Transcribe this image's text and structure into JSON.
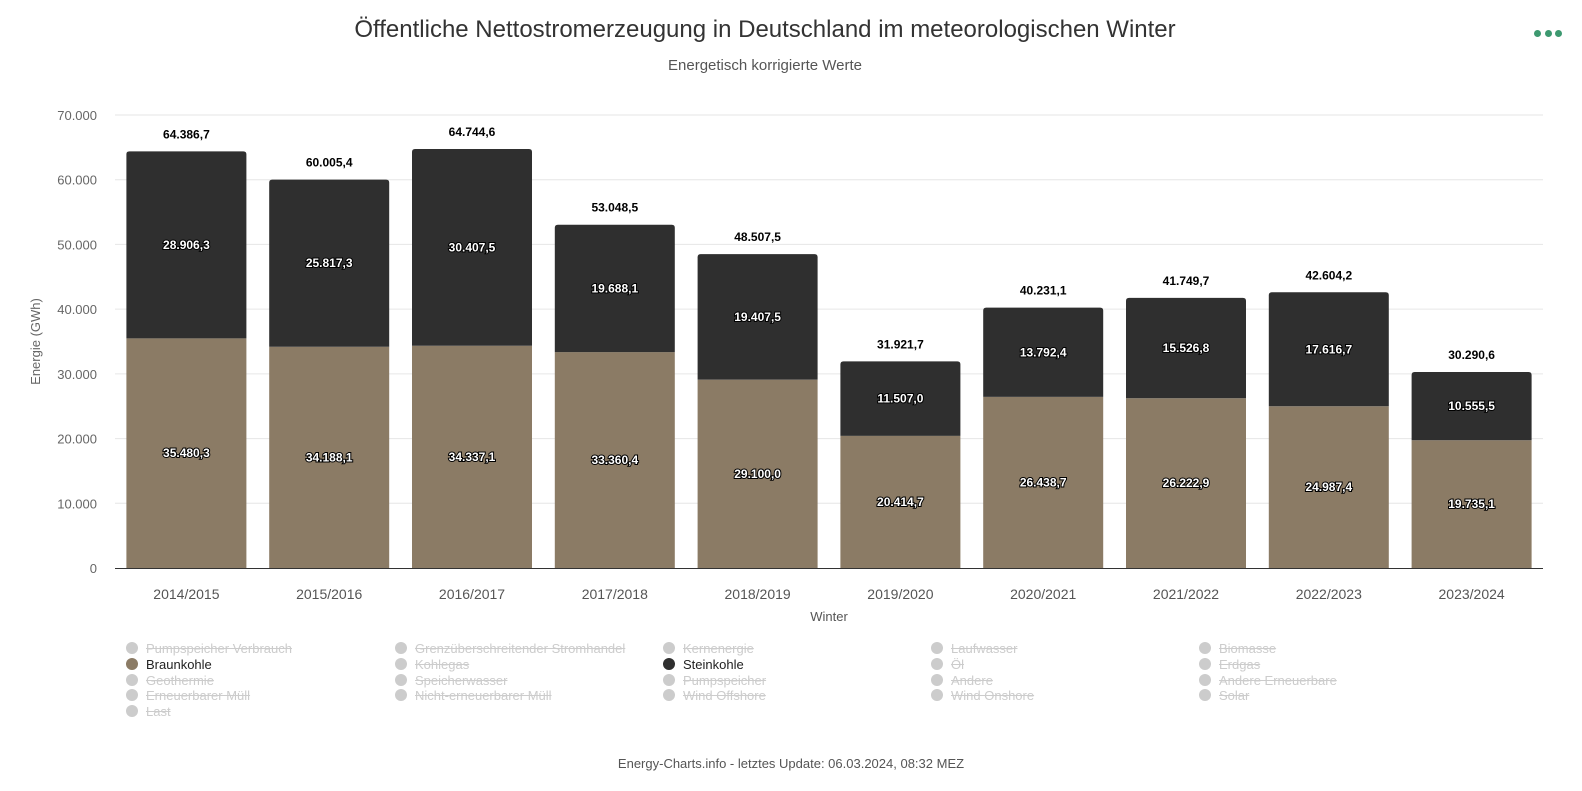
{
  "header": {
    "title": "Öffentliche Nettostromerzeugung in Deutschland im meteorologischen Winter",
    "subtitle": "Energetisch korrigierte Werte",
    "menu_icon": "more-horizontal-icon",
    "menu_color": "#3d9970"
  },
  "chart_data": {
    "type": "bar",
    "stacked": true,
    "title": "Öffentliche Nettostromerzeugung in Deutschland im meteorologischen Winter",
    "subtitle": "Energetisch korrigierte Werte",
    "xlabel": "Winter",
    "ylabel": "Energie (GWh)",
    "ylim": [
      0,
      70000
    ],
    "yticks": [
      0,
      10000,
      20000,
      30000,
      40000,
      50000,
      60000,
      70000
    ],
    "ytick_labels": [
      "0",
      "10.000",
      "20.000",
      "30.000",
      "40.000",
      "50.000",
      "60.000",
      "70.000"
    ],
    "grid": true,
    "categories": [
      "2014/2015",
      "2015/2016",
      "2016/2017",
      "2017/2018",
      "2018/2019",
      "2019/2020",
      "2020/2021",
      "2021/2022",
      "2022/2023",
      "2023/2024"
    ],
    "series": [
      {
        "name": "Braunkohle",
        "color": "#8b7b65",
        "values": [
          35480.3,
          34188.1,
          34337.1,
          33360.4,
          29100.0,
          20414.7,
          26438.7,
          26222.9,
          24987.4,
          19735.1
        ],
        "labels": [
          "35.480,3",
          "34.188,1",
          "34.337,1",
          "33.360,4",
          "29.100,0",
          "20.414,7",
          "26.438,7",
          "26.222,9",
          "24.987,4",
          "19.735,1"
        ]
      },
      {
        "name": "Steinkohle",
        "color": "#2f2f2f",
        "values": [
          28906.3,
          25817.3,
          30407.5,
          19688.1,
          19407.5,
          11507.0,
          13792.4,
          15526.8,
          17616.7,
          10555.5
        ],
        "labels": [
          "28.906,3",
          "25.817,3",
          "30.407,5",
          "19.688,1",
          "19.407,5",
          "11.507,0",
          "13.792,4",
          "15.526,8",
          "17.616,7",
          "10.555,5"
        ]
      }
    ],
    "totals": [
      64386.7,
      60005.4,
      64744.6,
      53048.5,
      48507.5,
      31921.7,
      40231.1,
      41749.7,
      42604.2,
      30290.6
    ],
    "total_labels": [
      "64.386,7",
      "60.005,4",
      "64.744,6",
      "53.048,5",
      "48.507,5",
      "31.921,7",
      "40.231,1",
      "41.749,7",
      "42.604,2",
      "30.290,6"
    ]
  },
  "legend": {
    "placement": "bottom",
    "items": [
      {
        "label": "Pumpspeicher Verbrauch",
        "active": false
      },
      {
        "label": "Grenzüberschreitender Stromhandel",
        "active": false
      },
      {
        "label": "Kernenergie",
        "active": false
      },
      {
        "label": "Laufwasser",
        "active": false
      },
      {
        "label": "Biomasse",
        "active": false
      },
      {
        "label": "Braunkohle",
        "active": true,
        "color": "#8b7b65",
        "highlighted": true
      },
      {
        "label": "Kohlegas",
        "active": false
      },
      {
        "label": "Steinkohle",
        "active": true,
        "color": "#2f2f2f",
        "highlighted": true
      },
      {
        "label": "Öl",
        "active": false
      },
      {
        "label": "Erdgas",
        "active": false
      },
      {
        "label": "Geothermie",
        "active": false
      },
      {
        "label": "Speicherwasser",
        "active": false
      },
      {
        "label": "Pumpspeicher",
        "active": false
      },
      {
        "label": "Andere",
        "active": false
      },
      {
        "label": "Andere Erneuerbare",
        "active": false
      },
      {
        "label": "Erneuerbarer Müll",
        "active": false
      },
      {
        "label": "Nicht-erneuerbarer Müll",
        "active": false
      },
      {
        "label": "Wind Offshore",
        "active": false
      },
      {
        "label": "Wind Onshore",
        "active": false
      },
      {
        "label": "Solar",
        "active": false
      },
      {
        "label": "Last",
        "active": false
      }
    ],
    "inactive_color": "#cccccc",
    "highlight_color": "#fff700"
  },
  "footer": {
    "credit": "Energy-Charts.info - letztes Update: 06.03.2024, 08:32 MEZ"
  }
}
